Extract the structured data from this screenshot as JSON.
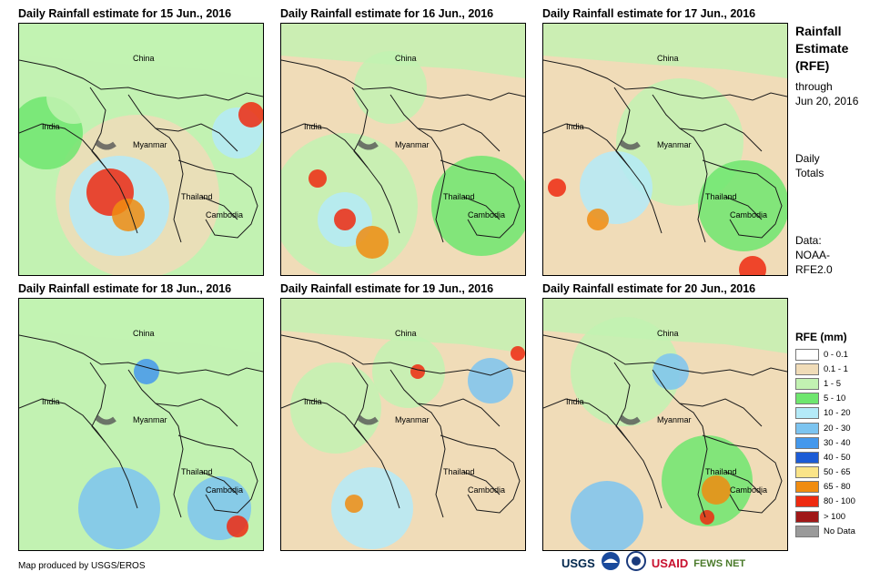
{
  "panels": [
    {
      "title": "Daily Rainfall estimate for 15 Jun., 2016"
    },
    {
      "title": "Daily Rainfall estimate for 16 Jun., 2016"
    },
    {
      "title": "Daily Rainfall estimate for 17 Jun., 2016"
    },
    {
      "title": "Daily Rainfall estimate for 18 Jun., 2016"
    },
    {
      "title": "Daily Rainfall estimate for 19 Jun., 2016"
    },
    {
      "title": "Daily Rainfall estimate for 20 Jun., 2016"
    }
  ],
  "map_labels": {
    "china": "China",
    "india": "India",
    "myanmar": "Myanmar",
    "thailand": "Thailand",
    "cambodia": "Cambodia"
  },
  "side": {
    "title_line1": "Rainfall",
    "title_line2": "Estimate",
    "title_line3": "(RFE)",
    "through_line1": "through",
    "through_line2": "Jun 20, 2016",
    "daily_line1": "Daily",
    "daily_line2": "Totals",
    "data_line1": "Data:",
    "data_line2": "NOAA-",
    "data_line3": "RFE2.0"
  },
  "legend": {
    "title": "RFE (mm)",
    "items": [
      {
        "label": "0 - 0.1",
        "color": "#ffffff"
      },
      {
        "label": "0.1 - 1",
        "color": "#f0dcb8"
      },
      {
        "label": "1 - 5",
        "color": "#c2f2b2"
      },
      {
        "label": "5 - 10",
        "color": "#6ee66e"
      },
      {
        "label": "10 - 20",
        "color": "#b4eaf8"
      },
      {
        "label": "20 - 30",
        "color": "#7cc4f0"
      },
      {
        "label": "30 - 40",
        "color": "#4498ec"
      },
      {
        "label": "40 - 50",
        "color": "#1c5cd6"
      },
      {
        "label": "50 - 65",
        "color": "#fae488"
      },
      {
        "label": "65 - 80",
        "color": "#f08c10"
      },
      {
        "label": "80 - 100",
        "color": "#ee2a10"
      },
      {
        "label": "> 100",
        "color": "#a01818"
      },
      {
        "label": "No Data",
        "color": "#9a9a9a"
      }
    ]
  },
  "credit": "Map produced by USGS/EROS",
  "logos": {
    "usgs": "USGS",
    "usaid": "USAID",
    "fewsnet": "FEWS NET"
  }
}
